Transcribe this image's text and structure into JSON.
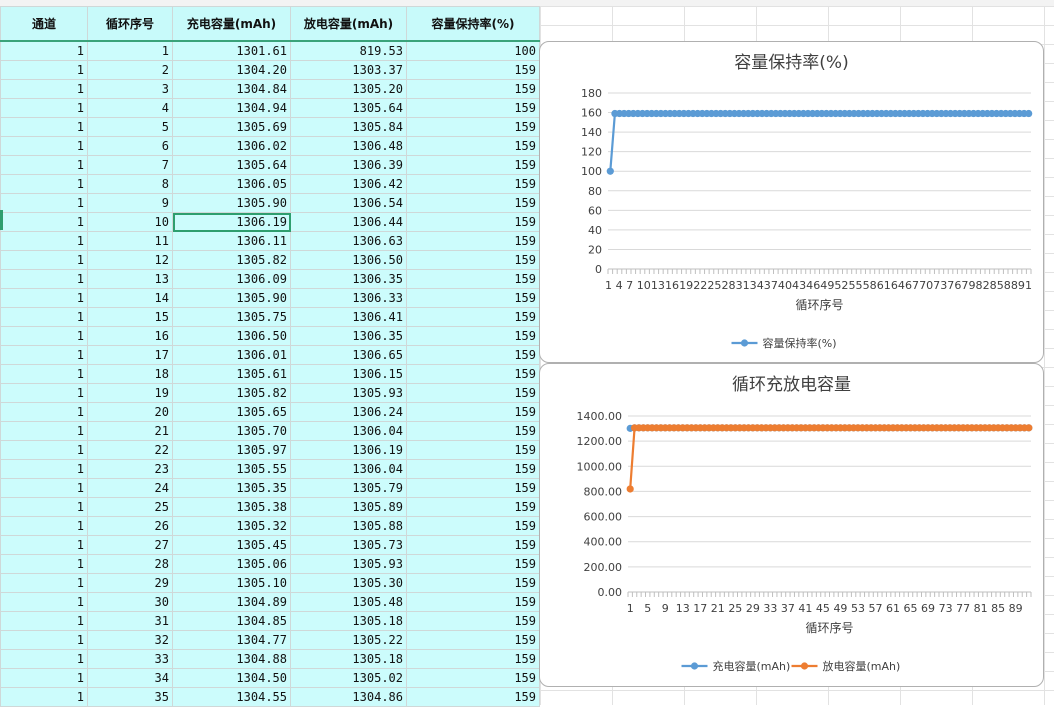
{
  "sheet": {
    "headers": [
      "通道",
      "循环序号",
      "充电容量(mAh)",
      "放电容量(mAh)",
      "容量保持率(%)"
    ],
    "rows": [
      [
        "1",
        "1",
        "1301.61",
        "819.53",
        "100"
      ],
      [
        "1",
        "2",
        "1304.20",
        "1303.37",
        "159"
      ],
      [
        "1",
        "3",
        "1304.84",
        "1305.20",
        "159"
      ],
      [
        "1",
        "4",
        "1304.94",
        "1305.64",
        "159"
      ],
      [
        "1",
        "5",
        "1305.69",
        "1305.84",
        "159"
      ],
      [
        "1",
        "6",
        "1306.02",
        "1306.48",
        "159"
      ],
      [
        "1",
        "7",
        "1305.64",
        "1306.39",
        "159"
      ],
      [
        "1",
        "8",
        "1306.05",
        "1306.42",
        "159"
      ],
      [
        "1",
        "9",
        "1305.90",
        "1306.54",
        "159"
      ],
      [
        "1",
        "10",
        "1306.19",
        "1306.44",
        "159"
      ],
      [
        "1",
        "11",
        "1306.11",
        "1306.63",
        "159"
      ],
      [
        "1",
        "12",
        "1305.82",
        "1306.50",
        "159"
      ],
      [
        "1",
        "13",
        "1306.09",
        "1306.35",
        "159"
      ],
      [
        "1",
        "14",
        "1305.90",
        "1306.33",
        "159"
      ],
      [
        "1",
        "15",
        "1305.75",
        "1306.41",
        "159"
      ],
      [
        "1",
        "16",
        "1306.50",
        "1306.35",
        "159"
      ],
      [
        "1",
        "17",
        "1306.01",
        "1306.65",
        "159"
      ],
      [
        "1",
        "18",
        "1305.61",
        "1306.15",
        "159"
      ],
      [
        "1",
        "19",
        "1305.82",
        "1305.93",
        "159"
      ],
      [
        "1",
        "20",
        "1305.65",
        "1306.24",
        "159"
      ],
      [
        "1",
        "21",
        "1305.70",
        "1306.04",
        "159"
      ],
      [
        "1",
        "22",
        "1305.97",
        "1306.19",
        "159"
      ],
      [
        "1",
        "23",
        "1305.55",
        "1306.04",
        "159"
      ],
      [
        "1",
        "24",
        "1305.35",
        "1305.79",
        "159"
      ],
      [
        "1",
        "25",
        "1305.38",
        "1305.89",
        "159"
      ],
      [
        "1",
        "26",
        "1305.32",
        "1305.88",
        "159"
      ],
      [
        "1",
        "27",
        "1305.45",
        "1305.73",
        "159"
      ],
      [
        "1",
        "28",
        "1305.06",
        "1305.93",
        "159"
      ],
      [
        "1",
        "29",
        "1305.10",
        "1305.30",
        "159"
      ],
      [
        "1",
        "30",
        "1304.89",
        "1305.48",
        "159"
      ],
      [
        "1",
        "31",
        "1304.85",
        "1305.18",
        "159"
      ],
      [
        "1",
        "32",
        "1304.77",
        "1305.22",
        "159"
      ],
      [
        "1",
        "33",
        "1304.88",
        "1305.18",
        "159"
      ],
      [
        "1",
        "34",
        "1304.50",
        "1305.02",
        "159"
      ],
      [
        "1",
        "35",
        "1304.55",
        "1304.86",
        "159"
      ]
    ],
    "selected_cell": {
      "row": 9,
      "col": 2
    }
  },
  "chart_data": [
    {
      "type": "line",
      "title": "容量保持率(%)",
      "xlabel": "循环序号",
      "ylabel": "",
      "ylim": [
        0,
        180
      ],
      "yticks": [
        "0",
        "20",
        "40",
        "60",
        "80",
        "100",
        "120",
        "140",
        "160",
        "180"
      ],
      "xtick_text": "1  4  7  10131619222528313437404346495255586164677073767982858891",
      "x_count": 92,
      "series": [
        {
          "name": "容量保持率(%)",
          "color": "#5b9bd5",
          "first": 100,
          "rest": 159
        }
      ],
      "legend": "bottom",
      "grid": true
    },
    {
      "type": "line",
      "title": "循环充放电容量",
      "xlabel": "循环序号",
      "ylabel": "",
      "ylim": [
        0,
        1400
      ],
      "yticks": [
        "0.00",
        "200.00",
        "400.00",
        "600.00",
        "800.00",
        "1000.00",
        "1200.00",
        "1400.00"
      ],
      "xticks": [
        "1",
        "5",
        "9",
        "13",
        "17",
        "21",
        "25",
        "29",
        "33",
        "37",
        "41",
        "45",
        "49",
        "53",
        "57",
        "61",
        "65",
        "69",
        "73",
        "77",
        "81",
        "85",
        "89"
      ],
      "x_count": 92,
      "series": [
        {
          "name": "充电容量(mAh)",
          "color": "#5b9bd5",
          "first": 1301.61,
          "rest": 1305.5
        },
        {
          "name": "放电容量(mAh)",
          "color": "#ed7d31",
          "first": 819.53,
          "rest": 1305.9
        }
      ],
      "legend": "bottom",
      "grid": true
    }
  ]
}
